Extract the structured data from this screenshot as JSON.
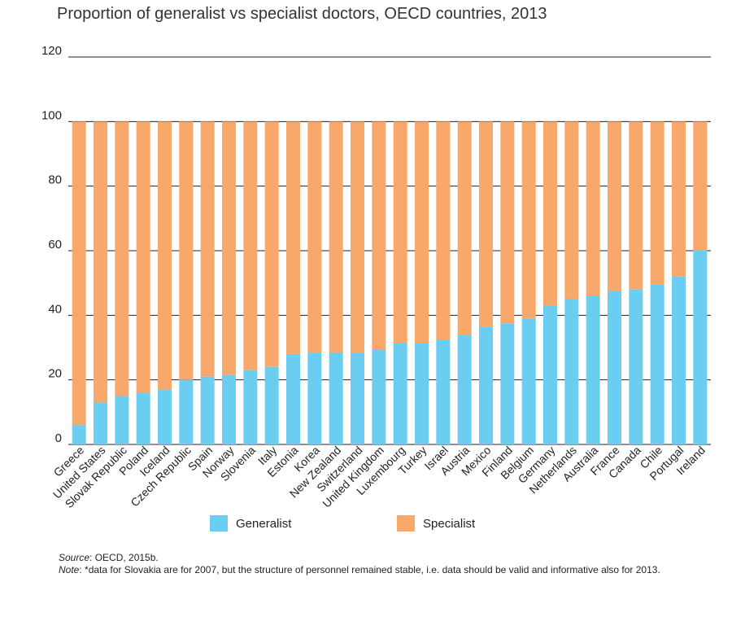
{
  "colors": {
    "generalist": "#6bcdf0",
    "specialist": "#f8a86a",
    "gridline": "#231f20"
  },
  "chart_data": {
    "type": "bar",
    "stacked": true,
    "title": "Proportion of generalist vs specialist doctors, OECD countries, 2013",
    "xlabel": "",
    "ylabel": "",
    "ylim": [
      0,
      120
    ],
    "yticks": [
      0,
      20,
      40,
      60,
      80,
      100,
      120
    ],
    "grid": true,
    "legend_position": "bottom",
    "categories": [
      "Greece",
      "United States",
      "Slovak Republic",
      "Poland",
      "Iceland",
      "Czech Republic",
      "Spain",
      "Norway",
      "Slovenia",
      "Italy",
      "Estonia",
      "Korea",
      "New Zealand",
      "Switzerland",
      "United Kingdom",
      "Luxembourg",
      "Turkey",
      "Israel",
      "Austria",
      "Mexico",
      "Finland",
      "Belgium",
      "Germany",
      "Netherlands",
      "Australia",
      "France",
      "Canada",
      "Chile",
      "Portugal",
      "Ireland"
    ],
    "series": [
      {
        "name": "Generalist",
        "values": [
          6,
          13,
          15,
          16,
          17,
          20,
          21,
          21.5,
          23,
          24,
          28,
          28.5,
          28.5,
          28.5,
          29.5,
          31.5,
          31.5,
          32.5,
          34,
          36.5,
          37.5,
          39,
          43,
          45,
          46,
          47.5,
          48,
          49.5,
          52,
          60
        ]
      },
      {
        "name": "Specialist",
        "values": [
          94,
          87,
          85,
          84,
          83,
          80,
          79,
          78.5,
          77,
          76,
          72,
          71.5,
          71.5,
          71.5,
          70.5,
          68.5,
          68.5,
          67.5,
          66,
          63.5,
          62.5,
          61,
          57,
          55,
          54,
          52.5,
          52,
          50.5,
          48,
          40
        ]
      }
    ]
  },
  "legend": {
    "generalist_label": "Generalist",
    "specialist_label": "Specialist"
  },
  "notes": {
    "source_label": "Source",
    "source_text": ": OECD, 2015b.",
    "note_label": "Note",
    "note_text": ": *data for Slovakia are for 2007, but the structure of personnel remained stable, i.e. data should be valid and informative also for 2013."
  }
}
